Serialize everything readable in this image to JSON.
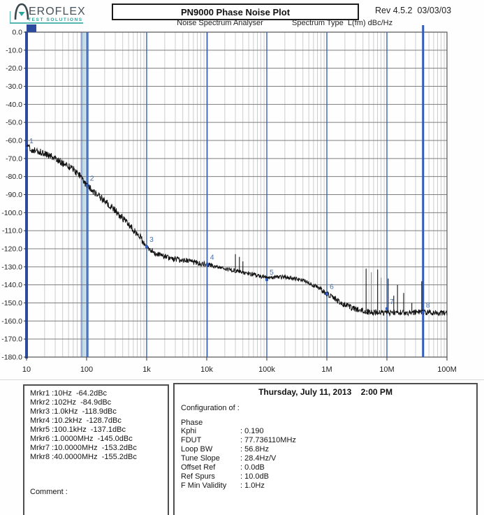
{
  "header": {
    "logo": {
      "brand": "EROFLEX",
      "sub": "TEST SOLUTIONS"
    },
    "title": "PN9000 Phase Noise Plot",
    "revision": "Rev 4.5.2  03/03/03",
    "subtitle": "Noise Spectrum Analyser",
    "spectrum_type": "Spectrum Type  L(fm) dBc/Hz"
  },
  "chart_data": {
    "type": "line",
    "title": "PN9000 Phase Noise Plot",
    "x_axis": {
      "scale": "log",
      "unit": "Hz",
      "min": 10,
      "max": 100000000,
      "tick_labels": [
        "10",
        "100",
        "1k",
        "10k",
        "100k",
        "1M",
        "10M",
        "100M"
      ]
    },
    "y_axis": {
      "unit": "dBc/Hz",
      "min": -180,
      "max": 0,
      "tick_step": 10
    },
    "series": [
      {
        "name": "phase-noise-trace",
        "points_hz_dbc": [
          [
            10,
            -63.5
          ],
          [
            12.6,
            -65.5
          ],
          [
            17.8,
            -66.5
          ],
          [
            28.2,
            -69.5
          ],
          [
            39.8,
            -72.5
          ],
          [
            60.3,
            -76
          ],
          [
            79.4,
            -80
          ],
          [
            102,
            -85
          ],
          [
            151,
            -90
          ],
          [
            251,
            -96.5
          ],
          [
            398,
            -103
          ],
          [
            603,
            -109.5
          ],
          [
            794,
            -114
          ],
          [
            1000,
            -118.9
          ],
          [
            1410,
            -122.5
          ],
          [
            2000,
            -124.5
          ],
          [
            3980,
            -126.5
          ],
          [
            6310,
            -127.5
          ],
          [
            10200,
            -128.7
          ],
          [
            20000,
            -131
          ],
          [
            39800,
            -133
          ],
          [
            63100,
            -134.5
          ],
          [
            100000,
            -136
          ],
          [
            158000,
            -135.5
          ],
          [
            251000,
            -136
          ],
          [
            398000,
            -137.5
          ],
          [
            501000,
            -139
          ],
          [
            708000,
            -141.5
          ],
          [
            1000000,
            -145
          ],
          [
            1510000,
            -148.5
          ],
          [
            2000000,
            -151
          ],
          [
            3020000,
            -153.5
          ],
          [
            5010000,
            -155
          ],
          [
            10000000,
            -155.5
          ],
          [
            40000000,
            -155.2
          ],
          [
            100000000,
            -155.5
          ]
        ],
        "noise_amp_db_by_logf": [
          [
            1,
            2.0
          ],
          [
            3,
            1.5
          ],
          [
            4,
            1.15
          ],
          [
            5.9,
            1.6
          ]
        ]
      }
    ],
    "spurs_hz_topdbc": [
      [
        30000,
        -123,
        "dark"
      ],
      [
        35000,
        -124.5,
        "dark"
      ],
      [
        40000,
        -127,
        "dark"
      ],
      [
        4500000,
        -131,
        "dark"
      ],
      [
        5500000,
        -133,
        "gray"
      ],
      [
        7000000,
        -131.5,
        "dark"
      ],
      [
        8000000,
        -136,
        "gray"
      ],
      [
        10500000,
        -136.5,
        "dark"
      ],
      [
        13000000,
        -146,
        "dark"
      ],
      [
        15000000,
        -140,
        "dark"
      ],
      [
        19000000,
        -144.5,
        "dark"
      ],
      [
        26000000,
        -150,
        "dark"
      ],
      [
        38000000,
        -138,
        "dark"
      ]
    ],
    "markers": [
      {
        "n": 1,
        "hz": 10,
        "dbc": -64.2
      },
      {
        "n": 2,
        "hz": 102,
        "dbc": -84.9
      },
      {
        "n": 3,
        "hz": 1000,
        "dbc": -118.9
      },
      {
        "n": 4,
        "hz": 10200,
        "dbc": -128.7
      },
      {
        "n": 5,
        "hz": 100100,
        "dbc": -137.1
      },
      {
        "n": 6,
        "hz": 1000000,
        "dbc": -145.0
      },
      {
        "n": 7,
        "hz": 10000000,
        "dbc": -153.2
      },
      {
        "n": 8,
        "hz": 40000000,
        "dbc": -155.2
      }
    ],
    "highlight_band_hz": [
      83,
      106
    ],
    "grid": "log-major-minor"
  },
  "marker_panel": {
    "lines": [
      "Mrkr1 :10Hz  -64.2dBc",
      "Mrkr2 :102Hz  -84.9dBc",
      "Mrkr3 :1.0kHz  -118.9dBc",
      "Mrkr4 :10.2kHz  -128.7dBc",
      "Mrkr5 :100.1kHz  -137.1dBc",
      "Mrkr6 :1.0000MHz  -145.0dBc",
      "Mrkr7 :10.0000MHz  -153.2dBc",
      "Mrkr8 :40.0000MHz  -155.2dBc"
    ],
    "comment_label": "Comment :"
  },
  "config_panel": {
    "datetime": "Thursday, July 11, 2013    2:00 PM",
    "heading": "Configuration of :",
    "subject": "Phase",
    "rows": [
      {
        "label": "Kphi",
        "value": ": 0.190"
      },
      {
        "label": "FDUT",
        "value": ": 77.736110MHz"
      },
      {
        "label": "Loop BW",
        "value": ": 56.8Hz"
      },
      {
        "label": "Tune Slope",
        "value": ": 28.4Hz/V"
      },
      {
        "label": "Offset Ref",
        "value": ": 0.0dB"
      },
      {
        "label": "Ref Spurs",
        "value": ": 10.0dB"
      },
      {
        "label": "F Min Validity",
        "value": ": 1.0Hz"
      }
    ]
  },
  "colors": {
    "accent_navy": "#2c4a9e",
    "marker_line": "#3a62b0",
    "marker_thick": "#2f5bbf",
    "marker_label": "#4a6fae",
    "trace": "#111111",
    "spur_gray": "#8a8a8a",
    "grid_major": "#7d7d7d",
    "grid_minor": "#b8b8b8",
    "frame": "#555555",
    "band_fill": "#cbe6f2",
    "teal": "#2aa49e",
    "logo_dark": "#47525a"
  }
}
